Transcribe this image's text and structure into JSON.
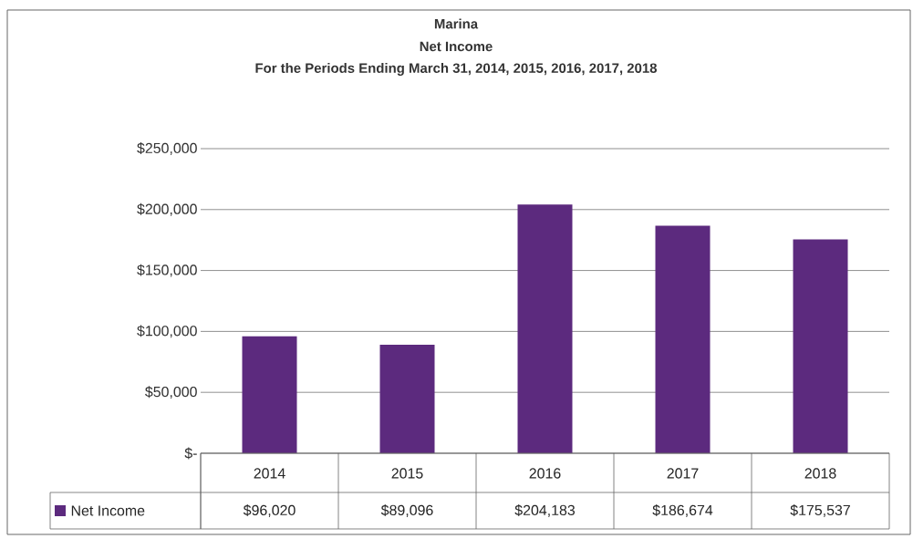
{
  "chart_data": {
    "type": "bar",
    "title": "Marina",
    "subtitle": "Net Income",
    "annotations": [
      "For the Periods Ending March 31, 2014, 2015, 2016, 2017, 2018"
    ],
    "categories": [
      "2014",
      "2015",
      "2016",
      "2017",
      "2018"
    ],
    "series": [
      {
        "name": "Net Income",
        "color": "#5c2a7e",
        "values": [
          96020,
          89096,
          204183,
          186674,
          175537
        ],
        "value_labels": [
          "$96,020",
          "$89,096",
          "$204,183",
          "$186,674",
          "$175,537"
        ]
      }
    ],
    "ylim": [
      0,
      250000
    ],
    "yticks": [
      {
        "value": 0,
        "label": "$-"
      },
      {
        "value": 50000,
        "label": "$50,000"
      },
      {
        "value": 100000,
        "label": "$100,000"
      },
      {
        "value": 150000,
        "label": "$150,000"
      },
      {
        "value": 200000,
        "label": "$200,000"
      },
      {
        "value": 250000,
        "label": "$250,000"
      }
    ],
    "grid": "y",
    "legend": "bottom"
  }
}
